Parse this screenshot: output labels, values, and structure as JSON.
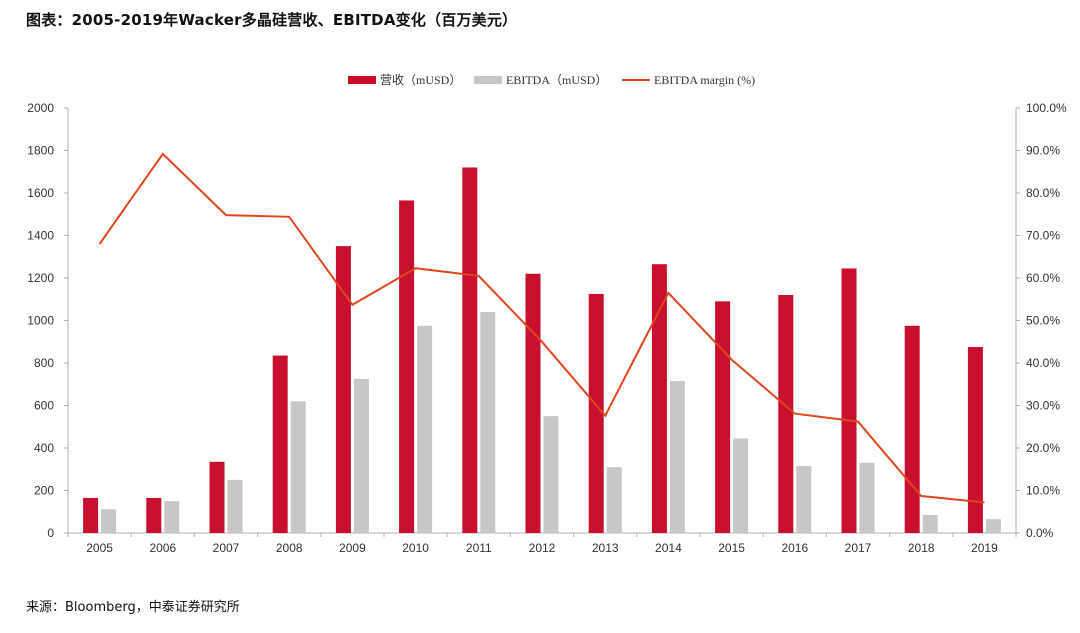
{
  "header": {
    "title": "图表：2005-2019年Wacker多晶硅营收、EBITDA变化（百万美元）"
  },
  "footer": {
    "source": "来源：Bloomberg，中泰证券研究所"
  },
  "colors": {
    "revenue": "#C8102E",
    "ebitda": "#C7C7C7",
    "margin": "#E0461E",
    "axis": "#B0B0B0",
    "text": "#333333"
  },
  "chart_data": {
    "type": "bar",
    "title": "图表：2005-2019年Wacker多晶硅营收、EBITDA变化（百万美元）",
    "categories": [
      "2005",
      "2006",
      "2007",
      "2008",
      "2009",
      "2010",
      "2011",
      "2012",
      "2013",
      "2014",
      "2015",
      "2016",
      "2017",
      "2018",
      "2019"
    ],
    "series": [
      {
        "name": "营收（mUSD）",
        "kind": "bar",
        "axis": "left",
        "values": [
          165,
          165,
          335,
          835,
          1350,
          1565,
          1720,
          1220,
          1125,
          1265,
          1090,
          1120,
          1245,
          975,
          875
        ]
      },
      {
        "name": "EBITDA（mUSD）",
        "kind": "bar",
        "axis": "left",
        "values": [
          112,
          150,
          250,
          620,
          725,
          975,
          1040,
          550,
          310,
          715,
          445,
          315,
          330,
          85,
          65
        ]
      },
      {
        "name": "EBITDA margin (%)",
        "kind": "line",
        "axis": "right",
        "values": [
          68.0,
          89.2,
          74.8,
          74.4,
          53.7,
          62.3,
          60.5,
          45.0,
          27.6,
          56.5,
          40.8,
          28.1,
          26.2,
          8.7,
          7.2
        ]
      }
    ],
    "y_left": {
      "min": 0,
      "max": 2000,
      "step": 200,
      "ticks": [
        "0",
        "200",
        "400",
        "600",
        "800",
        "1000",
        "1200",
        "1400",
        "1600",
        "1800",
        "2000"
      ]
    },
    "y_right": {
      "min": 0,
      "max": 100,
      "step": 10,
      "ticks": [
        "0.0%",
        "10.0%",
        "20.0%",
        "30.0%",
        "40.0%",
        "50.0%",
        "60.0%",
        "70.0%",
        "80.0%",
        "90.0%",
        "100.0%"
      ]
    },
    "legend": {
      "position": "top-center",
      "items": [
        "营收（mUSD）",
        "EBITDA（mUSD）",
        "EBITDA margin (%)"
      ]
    },
    "grid": false
  }
}
